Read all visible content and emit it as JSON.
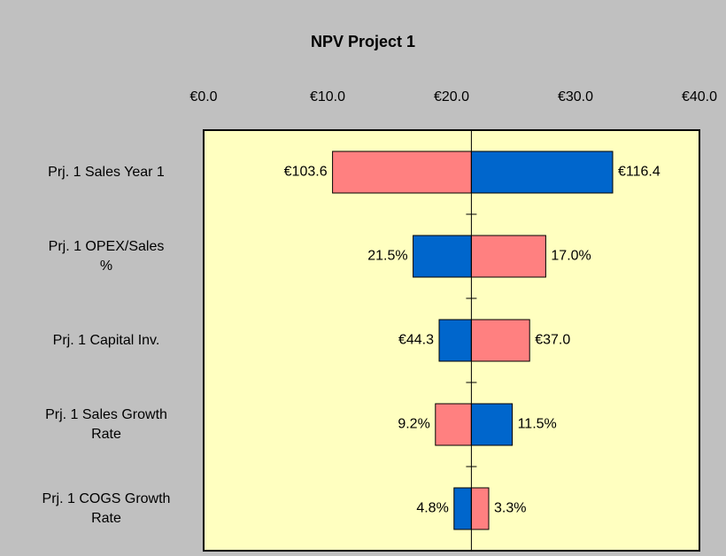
{
  "chart_data": {
    "type": "tornado",
    "title": "NPV Project 1",
    "categories": [
      "Prj. 1 Sales Year 1",
      "Prj. 1 OPEX/Sales %",
      "Prj. 1 Capital Inv.",
      "Prj. 1 Sales Growth Rate",
      "Prj. 1 COGS Growth Rate"
    ],
    "base": 21.6,
    "left_values": [
      10.4,
      16.9,
      19.0,
      18.7,
      20.2
    ],
    "right_values": [
      33.0,
      27.6,
      26.3,
      24.9,
      23.0
    ],
    "left_inputs": [
      "€103.6",
      "21.5%",
      "€44.3",
      "9.2%",
      "4.8%"
    ],
    "right_inputs": [
      "€116.4",
      "17.0%",
      "€37.0",
      "11.5%",
      "3.3%"
    ],
    "left_colors": [
      "#ff8080",
      "#0066cc",
      "#0066cc",
      "#ff8080",
      "#0066cc"
    ],
    "right_colors": [
      "#0066cc",
      "#ff8080",
      "#ff8080",
      "#0066cc",
      "#ff8080"
    ],
    "xlim": [
      0,
      40
    ],
    "xticks": [
      {
        "value": 0,
        "label": "€0.0"
      },
      {
        "value": 10,
        "label": "€10.0"
      },
      {
        "value": 20,
        "label": "€20.0"
      },
      {
        "value": 30,
        "label": "€30.0"
      },
      {
        "value": 40,
        "label": "€40.0"
      }
    ],
    "plot_background": "#ffffc0"
  }
}
